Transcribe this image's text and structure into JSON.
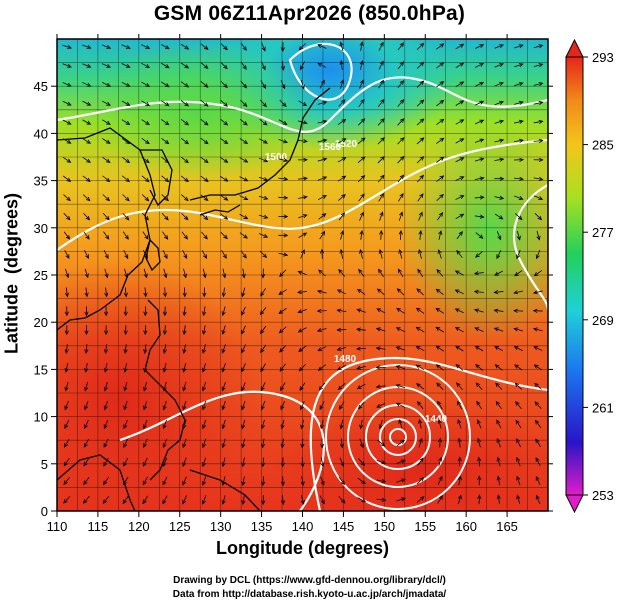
{
  "title": "GSM 06Z11Apr2026 (850.0hPa)",
  "xlabel": "Longitude (degrees)",
  "ylabel": "Latitude  (degrees)",
  "x_ticks": [
    "110",
    "115",
    "120",
    "125",
    "130",
    "135",
    "140",
    "145",
    "150",
    "155",
    "160",
    "165"
  ],
  "y_ticks": [
    "0",
    "5",
    "10",
    "15",
    "20",
    "25",
    "30",
    "35",
    "40",
    "45"
  ],
  "colorbar_ticks": [
    "253",
    "261",
    "269",
    "277",
    "285",
    "293"
  ],
  "contour_labels": [
    "1560",
    "1500",
    "1520",
    "1480",
    "1440"
  ],
  "credit_line1": "Drawing by DCL (https://www.gfd-dennou.org/library/dcl/)",
  "credit_line2": "Data from http://database.rish.kyoto-u.ac.jp/arch/jmadata/",
  "map": {
    "lon_range": [
      110,
      170
    ],
    "lat_range": [
      0,
      50
    ],
    "colorbar_range": [
      253,
      293
    ],
    "colors": {
      "hot": "#e8301c",
      "warm": "#f7a21c",
      "mid": "#bfe320",
      "cool": "#27d16e",
      "cold": "#1d9ef0",
      "contour": "#ffffff",
      "coast": "#000000",
      "vector": "#000000"
    }
  }
}
